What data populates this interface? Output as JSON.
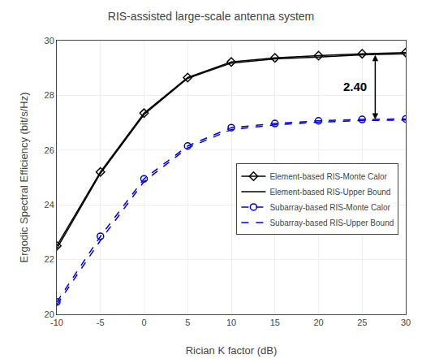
{
  "chart_data": {
    "type": "line",
    "title": "RIS-assisted large-scale antenna system",
    "xlabel": "Rician K factor (dB)",
    "ylabel": "Ergodic Spectral Efficiency (bit/s/Hz)",
    "x": [
      -10,
      -5,
      0,
      5,
      10,
      15,
      20,
      25,
      30
    ],
    "series": [
      {
        "name": "Element-based RIS-Monte Calor",
        "color": "#000000",
        "marker": "diamond",
        "line_style": "solid",
        "values": [
          22.5,
          25.2,
          27.35,
          28.65,
          29.22,
          29.37,
          29.45,
          29.52,
          29.56
        ]
      },
      {
        "name": "Element-based RIS-Upper Bound",
        "color": "#000000",
        "line_style": "solid",
        "values": [
          22.4,
          25.15,
          27.3,
          28.62,
          29.18,
          29.33,
          29.4,
          29.48,
          29.52
        ]
      },
      {
        "name": "Subarray-based RIS-Monte Calor",
        "color": "#0000cc",
        "marker": "circle",
        "line_style": "dashed",
        "values": [
          20.45,
          22.85,
          24.95,
          26.15,
          26.82,
          26.97,
          27.07,
          27.12,
          27.14
        ]
      },
      {
        "name": "Subarray-based RIS-Upper Bound",
        "color": "#0000cc",
        "line_style": "dashed",
        "values": [
          20.35,
          22.7,
          24.85,
          26.08,
          26.75,
          26.92,
          27.02,
          27.08,
          27.1
        ]
      }
    ],
    "xlim": [
      -10,
      30
    ],
    "ylim": [
      20,
      30
    ],
    "xticks": [
      -10,
      -5,
      0,
      5,
      10,
      15,
      20,
      25,
      30
    ],
    "yticks": [
      20,
      22,
      24,
      26,
      28,
      30
    ],
    "grid": true,
    "legend": "right",
    "annotations": [
      {
        "text": "2.40",
        "x": 26.5,
        "y_top": 29.52,
        "y_bottom": 27.12,
        "color": "#000000"
      }
    ]
  }
}
